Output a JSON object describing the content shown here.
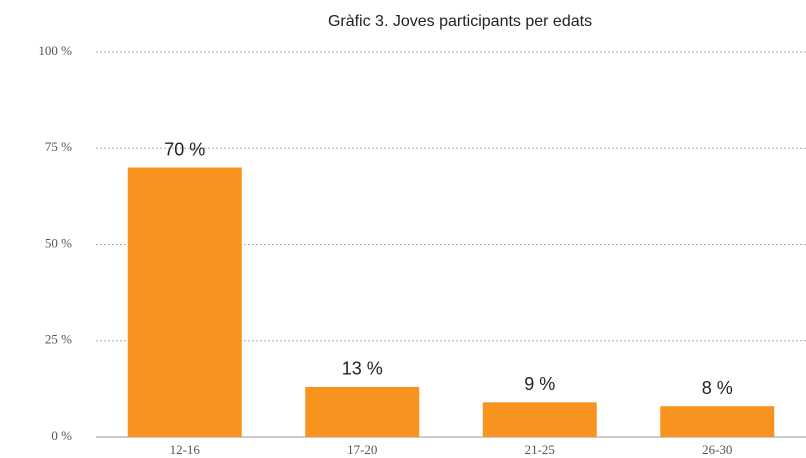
{
  "chart_data": {
    "type": "bar",
    "title": "Gràfic 3. Joves participants per edats",
    "categories": [
      "12-16",
      "17-20",
      "21-25",
      "26-30"
    ],
    "values": [
      70,
      13,
      9,
      8
    ],
    "value_labels": [
      "70 %",
      "13 %",
      "9 %",
      "8 %"
    ],
    "color": "#f7931e",
    "ylim": [
      0,
      100
    ],
    "yticks": [
      {
        "value": 0,
        "label": "0 %"
      },
      {
        "value": 25,
        "label": "25 %"
      },
      {
        "value": 50,
        "label": "50 %"
      },
      {
        "value": 75,
        "label": "75 %"
      },
      {
        "value": 100,
        "label": "100 %"
      }
    ],
    "grid": true
  }
}
